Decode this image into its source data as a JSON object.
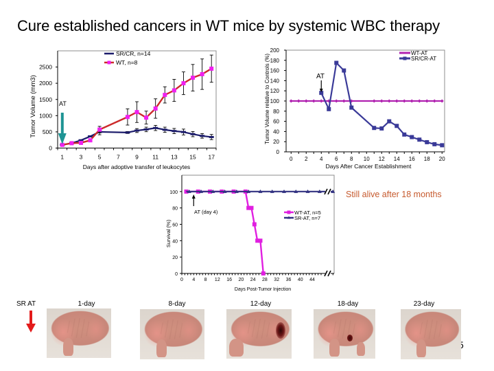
{
  "slide": {
    "title": "Cure established cancers in WT mice by systemic WBC therapy",
    "page_number": "5"
  },
  "callout": {
    "still_alive": "Still alive after 18 months",
    "color": "#c65a2e"
  },
  "chart_data": [
    {
      "type": "line",
      "title": "",
      "xlabel": "Days after adoptive transfer of leukocytes",
      "ylabel": "Tumor Volume (mm3)",
      "xlim": [
        0.5,
        17.5
      ],
      "ylim": [
        0,
        3000
      ],
      "x_ticks": [
        1,
        3,
        5,
        7,
        9,
        11,
        13,
        15,
        17
      ],
      "y_ticks": [
        0,
        500,
        1000,
        1500,
        2000,
        2500
      ],
      "grid": false,
      "legend": "top-center",
      "series": [
        {
          "name": "SR/CR, n=14",
          "color": "#1b1b6b",
          "marker": "dash",
          "marker_color": "#1b1b6b",
          "x": [
            1,
            2,
            3,
            4,
            5,
            8,
            9,
            10,
            11,
            12,
            13,
            14,
            15,
            16,
            17
          ],
          "values": [
            100,
            150,
            240,
            360,
            500,
            480,
            540,
            575,
            620,
            565,
            525,
            495,
            430,
            375,
            340
          ],
          "error": [
            0,
            0,
            0,
            0,
            90,
            30,
            60,
            70,
            80,
            80,
            80,
            90,
            80,
            70,
            80
          ]
        },
        {
          "name": "WT, n=8",
          "color": "#cc2a2a",
          "marker": "square",
          "marker_color": "#f020f0",
          "x": [
            1,
            2,
            3,
            4,
            5,
            8,
            9,
            10,
            11,
            12,
            13,
            14,
            15,
            16,
            17
          ],
          "values": [
            100,
            150,
            160,
            240,
            570,
            960,
            1110,
            940,
            1220,
            1640,
            1780,
            2000,
            2170,
            2280,
            2450
          ],
          "error": [
            0,
            0,
            0,
            0,
            100,
            250,
            320,
            200,
            300,
            250,
            340,
            350,
            410,
            470,
            420
          ]
        }
      ],
      "annotations": [
        {
          "text": "AT",
          "x": 1,
          "arrow": "down",
          "color": "#1e9494"
        }
      ]
    },
    {
      "type": "line",
      "title": "",
      "xlabel": "Days After Cancer Establishment",
      "ylabel": "Tumor Volume relative to Controls (%)",
      "xlim": [
        -0.66,
        20.34
      ],
      "ylim": [
        0,
        200
      ],
      "x_ticks": [
        0,
        2,
        4,
        6,
        8,
        10,
        12,
        14,
        16,
        18,
        20
      ],
      "y_ticks": [
        0,
        20,
        40,
        60,
        80,
        100,
        120,
        140,
        160,
        180,
        200
      ],
      "grid": false,
      "legend": "top-right",
      "series": [
        {
          "name": "WT-AT",
          "color": "#b021b0",
          "marker": "diamond",
          "marker_color": "#b021b0",
          "x": [
            0,
            1,
            2,
            3,
            4,
            5,
            6,
            7,
            8,
            11,
            12,
            13,
            14,
            15,
            16,
            17,
            18,
            19,
            20
          ],
          "values": [
            100,
            100,
            100,
            100,
            100,
            100,
            100,
            100,
            100,
            100,
            100,
            100,
            100,
            100,
            100,
            100,
            100,
            100,
            100
          ]
        },
        {
          "name": "SR/CR-AT",
          "color": "#3a3a98",
          "marker": "square",
          "marker_color": "#3a3a98",
          "x": [
            4,
            5,
            6,
            7,
            8,
            11,
            12,
            13,
            14,
            15,
            16,
            17,
            18,
            19,
            20
          ],
          "values": [
            116,
            84,
            175,
            160,
            87,
            47,
            46,
            60,
            51,
            34,
            29,
            24,
            19,
            15,
            13
          ]
        }
      ],
      "annotations": [
        {
          "text": "AT",
          "x": 4,
          "arrow": "down",
          "color": "#000000"
        }
      ]
    },
    {
      "type": "line",
      "title": "",
      "xlabel": "Days Post-Tumor Injection",
      "ylabel": "Survival (%)",
      "xlim": [
        0,
        51.4
      ],
      "ylim": [
        0,
        120
      ],
      "x_ticks": [
        0,
        4,
        8,
        12,
        16,
        20,
        24,
        28,
        32,
        36,
        40,
        44
      ],
      "y_ticks": [
        0,
        20,
        40,
        60,
        80,
        100
      ],
      "x_axis_break": true,
      "grid": false,
      "legend": "center-right",
      "series": [
        {
          "name": "WT-AT, n=5",
          "color": "#e01fe0",
          "marker": "square",
          "marker_color": "#e01fe0",
          "x": [
            1.5,
            5.5,
            9.5,
            13.5,
            17.5,
            21.5,
            22.5,
            23.5,
            24.5,
            25.5,
            26.5,
            27.5
          ],
          "values": [
            100,
            100,
            100,
            100,
            100,
            100,
            80,
            80,
            60,
            40,
            40,
            0
          ]
        },
        {
          "name": "SR-AT, n=7",
          "color": "#303080",
          "marker": "triangle",
          "marker_color": "#303080",
          "x": [
            1.5,
            2.5,
            6.5,
            10.5,
            14.5,
            18.5,
            22.5,
            26.5,
            30.5,
            34.5,
            38.5,
            42.5,
            46.5,
            51
          ],
          "values": [
            100,
            100,
            100,
            100,
            100,
            100,
            100,
            100,
            100,
            100,
            100,
            100,
            100,
            100
          ],
          "marker_skip_first": true
        }
      ],
      "annotations": [
        {
          "text": "AT (day 4)",
          "x": 4,
          "arrow": "up",
          "color": "#000000"
        }
      ]
    }
  ],
  "photo_panel": {
    "treatment_label": "SR AT",
    "arrow_color": "#e31b1b",
    "photos": [
      {
        "label": "1-day",
        "lesion": "none"
      },
      {
        "label": "8-day",
        "lesion": "none"
      },
      {
        "label": "12-day",
        "lesion": "open-wound"
      },
      {
        "label": "18-day",
        "lesion": "small-scab"
      },
      {
        "label": "23-day",
        "lesion": "none"
      }
    ]
  }
}
